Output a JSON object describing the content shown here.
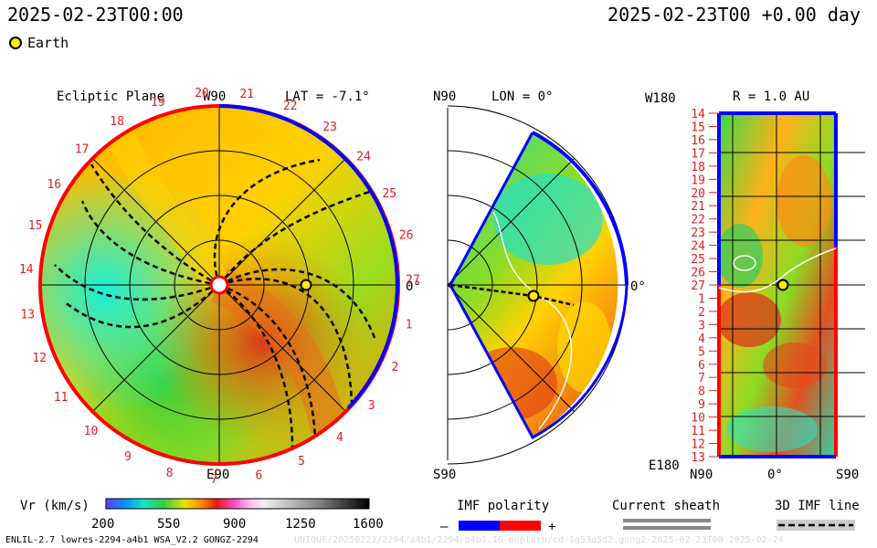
{
  "header": {
    "datetime_left": "2025-02-23T00:00",
    "datetime_right": "2025-02-23T00 +0.00 day"
  },
  "legend": {
    "earth_label": "Earth"
  },
  "panels": {
    "ecliptic": {
      "title": "Ecliptic Plane",
      "lat_label": "LAT = -7.1°",
      "top_label": "W90",
      "bottom_label": "E90",
      "right_label": "0°",
      "carrington_numbers": [
        "20",
        "21",
        "22",
        "23",
        "24",
        "25",
        "26",
        "27",
        "1",
        "2",
        "3",
        "4",
        "5",
        "6",
        "7",
        "8",
        "9",
        "10",
        "11",
        "12",
        "13",
        "14",
        "15",
        "16",
        "17",
        "18",
        "19"
      ]
    },
    "meridional": {
      "top_label": "N90",
      "lon_label": "LON = 0°",
      "bottom_label": "S90",
      "right_label": "0°"
    },
    "sphere": {
      "top_left_label": "W180",
      "r_label": "R = 1.0 AU",
      "bottom_left_label": "E180",
      "bottom_axis": [
        "N90",
        "0°",
        "S90"
      ],
      "rows": [
        "14",
        "15",
        "16",
        "17",
        "18",
        "19",
        "20",
        "21",
        "22",
        "23",
        "24",
        "25",
        "26",
        "27",
        "1",
        "2",
        "3",
        "4",
        "5",
        "6",
        "7",
        "8",
        "9",
        "10",
        "11",
        "12",
        "13"
      ]
    }
  },
  "colorbar": {
    "label": "Vr (km/s)",
    "ticks": [
      "200",
      "550",
      "900",
      "1250",
      "1600"
    ]
  },
  "imf": {
    "title": "IMF polarity",
    "minus": "–",
    "plus": "+"
  },
  "sheath": {
    "title": "Current sheath"
  },
  "imfline": {
    "title": "3D IMF line"
  },
  "footer": {
    "credit": "ENLIL-2.7 lowres-2294-a4b1 WSA_V2.2 GONGZ-2294",
    "watermark": "UNIQUE/20250223/2294/a4b1/2294-a4b1.16 nopturn/cd-1g53d5d2.gong2-2025-02-23T00 2025-02-24"
  },
  "colors": {
    "positive_polarity": "#ff0000",
    "negative_polarity": "#0000ff",
    "earth": "#ffee00",
    "label_red": "#e02020"
  },
  "chart_data": {
    "type": "heatmap",
    "quantity": "Vr (km/s)",
    "color_scale_range": [
      200,
      1600
    ],
    "colorbar_ticks": [
      200,
      550,
      900,
      1250,
      1600
    ],
    "earth_radius_au": 1.0,
    "earth_latitude_deg": -7.1,
    "meridional_longitude_deg": 0
  }
}
